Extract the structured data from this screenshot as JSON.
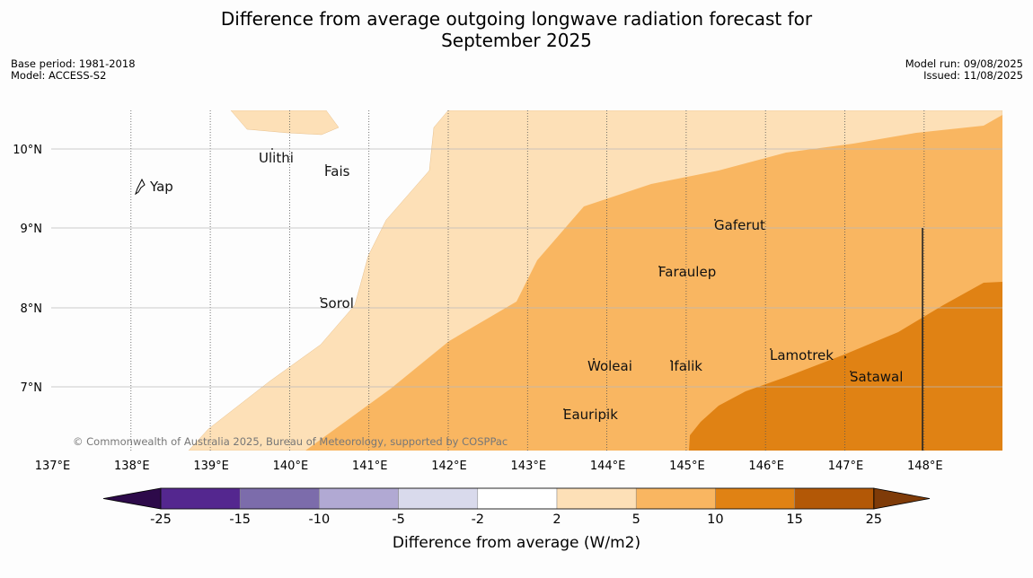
{
  "title": "Difference from average outgoing longwave radiation forecast for\nSeptember 2025",
  "meta_left": [
    "Base period: 1981-2018",
    "Model: ACCESS-S2"
  ],
  "meta_right": [
    "Model run: 09/08/2025",
    "Issued: 11/08/2025"
  ],
  "copyright": "© Commonwealth of Australia 2025, Bureau of Meteorology, supported by COSPPac",
  "lon_ticks": [
    "137°E",
    "138°E",
    "139°E",
    "140°E",
    "141°E",
    "142°E",
    "143°E",
    "144°E",
    "145°E",
    "146°E",
    "147°E",
    "148°E"
  ],
  "lat_ticks": [
    "10°N",
    "9°N",
    "8°N",
    "7°N"
  ],
  "islands": [
    {
      "name": "Ulithi"
    },
    {
      "name": "Fais"
    },
    {
      "name": "Yap"
    },
    {
      "name": "Gaferut"
    },
    {
      "name": "Faraulep"
    },
    {
      "name": "Sorol"
    },
    {
      "name": "Woleai"
    },
    {
      "name": "Ifalik"
    },
    {
      "name": "Lamotrek"
    },
    {
      "name": "Satawal"
    },
    {
      "name": "Eauripik"
    }
  ],
  "colorbar": {
    "label": "Difference from average (W/m2)",
    "ticks": [
      "-25",
      "-15",
      "-10",
      "-5",
      "-2",
      "2",
      "5",
      "10",
      "15",
      "25"
    ],
    "colors": [
      "#2d0a4a",
      "#54278f",
      "#7c6cab",
      "#b1a9d3",
      "#d9daec",
      "#ffffff",
      "#fde0b7",
      "#f9b661",
      "#e08214",
      "#b35806",
      "#7f3b08"
    ]
  }
}
